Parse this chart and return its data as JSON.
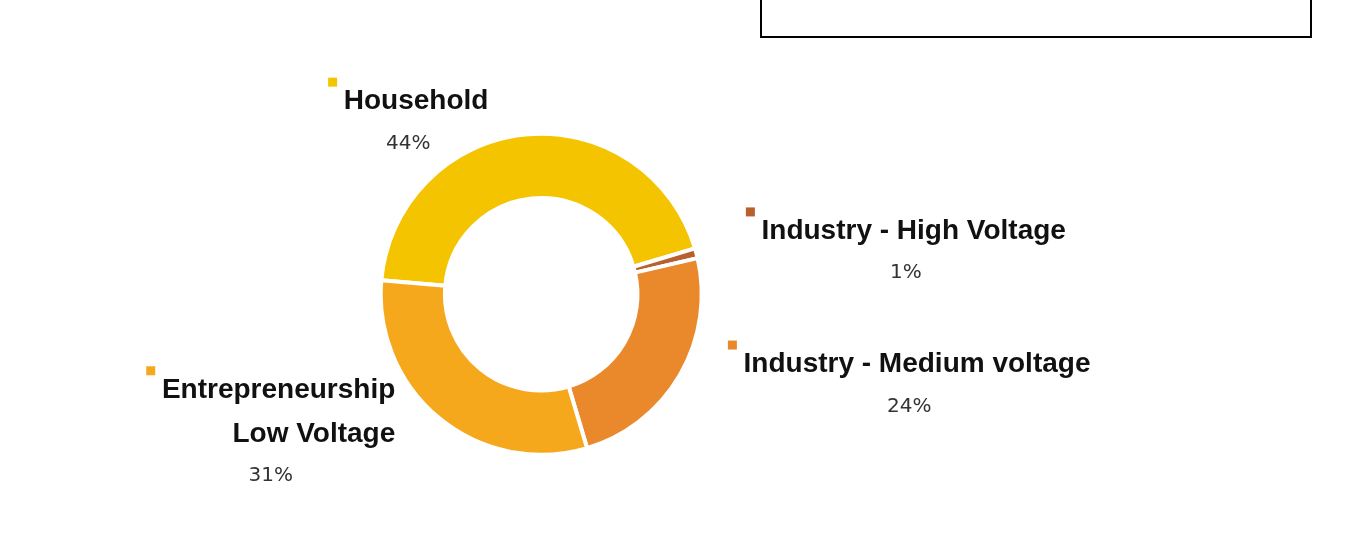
{
  "chart_data": {
    "type": "donut",
    "categories": [
      "Household",
      "Industry - High Voltage",
      "Industry - Medium voltage",
      "Entrepreneurship\nLow Voltage"
    ],
    "values": [
      44,
      1,
      24,
      31
    ],
    "value_labels": [
      "44%",
      "1%",
      "24%",
      "31%"
    ],
    "colors": [
      "#f5c400",
      "#b8612e",
      "#e9892c",
      "#f6a81c"
    ],
    "legend": "right"
  }
}
